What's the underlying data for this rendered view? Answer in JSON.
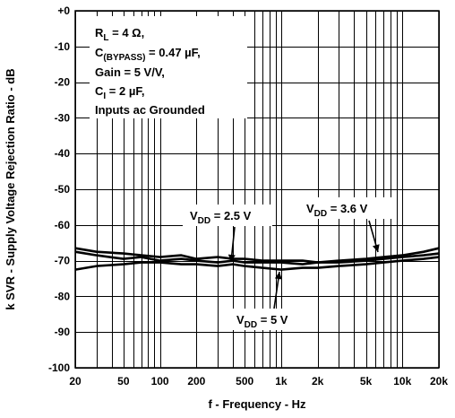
{
  "chart_data": {
    "type": "line",
    "title": "",
    "xlabel": "f - Frequency - Hz",
    "ylabel": "k SVR - Supply Voltage Rejection Ratio - dB",
    "xscale": "log",
    "xlim": [
      20,
      20000
    ],
    "ylim": [
      -100,
      0
    ],
    "grid": true,
    "x_tick_values": [
      20,
      50,
      100,
      200,
      500,
      1000,
      2000,
      5000,
      10000,
      20000
    ],
    "x_tick_labels": [
      "20",
      "50",
      "100",
      "200",
      "500",
      "1k",
      "2k",
      "5k",
      "10k",
      "20k"
    ],
    "y_tick_values": [
      0,
      -10,
      -20,
      -30,
      -40,
      -50,
      -60,
      -70,
      -80,
      -90,
      -100
    ],
    "y_tick_labels": [
      "+0",
      "-10",
      "-20",
      "-30",
      "-40",
      "-50",
      "-60",
      "-70",
      "-80",
      "-90",
      "-100"
    ],
    "conditions": [
      {
        "main": "R",
        "sub": "L",
        "rest": " = 4 Ω,"
      },
      {
        "main": "C",
        "sub": "(BYPASS)",
        "rest": " = 0.47 µF,"
      },
      {
        "main": "Gain = 5 V/V,",
        "sub": "",
        "rest": ""
      },
      {
        "main": "C",
        "sub": "I",
        "rest": " = 2 µF,"
      },
      {
        "main": "Inputs ac Grounded",
        "sub": "",
        "rest": ""
      }
    ],
    "annotations": [
      {
        "main": "V",
        "sub": "DD",
        "rest": " = 2.5 V",
        "series": 0
      },
      {
        "main": "V",
        "sub": "DD",
        "rest": " = 3.6 V",
        "series": 1
      },
      {
        "main": "V",
        "sub": "DD",
        "rest": " = 5 V",
        "series": 2
      }
    ],
    "series": [
      {
        "x": [
          20,
          30,
          50,
          70,
          100,
          150,
          200,
          300,
          400,
          500,
          700,
          1000,
          1500,
          2000,
          3000,
          5000,
          7000,
          10000,
          15000,
          20000
        ],
        "y": [
          -67.5,
          -68.5,
          -69.5,
          -69.0,
          -70.0,
          -69.5,
          -70.0,
          -70.5,
          -70.0,
          -70.5,
          -70.5,
          -70.5,
          -71.0,
          -70.5,
          -70.5,
          -70.0,
          -69.5,
          -69.0,
          -68.5,
          -68.0
        ]
      },
      {
        "x": [
          20,
          30,
          50,
          70,
          100,
          150,
          200,
          300,
          400,
          500,
          700,
          1000,
          1500,
          2000,
          3000,
          5000,
          7000,
          10000,
          15000,
          20000
        ],
        "y": [
          -66.5,
          -67.5,
          -68.0,
          -68.5,
          -69.0,
          -68.5,
          -69.5,
          -69.0,
          -69.5,
          -69.5,
          -70.0,
          -70.0,
          -70.0,
          -70.5,
          -70.0,
          -69.5,
          -69.0,
          -68.5,
          -67.5,
          -66.5
        ]
      },
      {
        "x": [
          20,
          30,
          50,
          70,
          100,
          150,
          200,
          300,
          400,
          500,
          700,
          1000,
          1500,
          2000,
          3000,
          5000,
          7000,
          10000,
          15000,
          20000
        ],
        "y": [
          -72.5,
          -71.5,
          -71.0,
          -70.5,
          -70.5,
          -71.0,
          -71.0,
          -71.5,
          -71.0,
          -71.5,
          -72.0,
          -72.5,
          -72.0,
          -72.0,
          -71.5,
          -71.0,
          -70.5,
          -70.0,
          -69.5,
          -69.0
        ]
      }
    ]
  }
}
